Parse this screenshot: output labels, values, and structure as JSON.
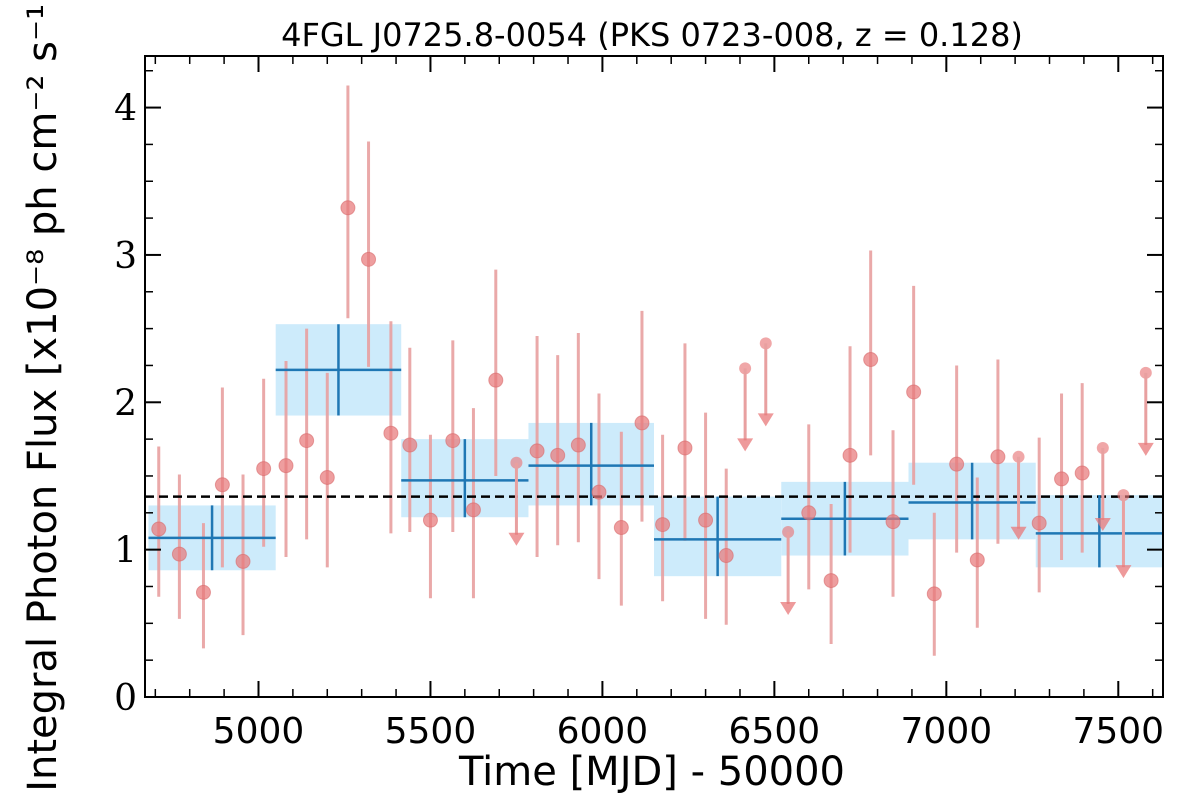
{
  "chart_data": {
    "type": "scatter",
    "title": "4FGL J0725.8-0054 (PKS 0723-008, z = 0.128)",
    "xlabel": "Time [MJD] - 50000",
    "ylabel": "Integral Photon Flux [x10⁻⁸ ph cm⁻² s⁻¹]",
    "xlim": [
      4670,
      7630
    ],
    "ylim": [
      0,
      4.35
    ],
    "xticks": [
      5000,
      5500,
      6000,
      6500,
      7000,
      7500
    ],
    "yticks": [
      0,
      1,
      2,
      3,
      4
    ],
    "grid": false,
    "reference_level": 1.36,
    "colors": {
      "points": "#e8787a",
      "errorbars": "#e8a0a0",
      "bins_fill": "#cdebfb",
      "bins_line": "#1f77b4",
      "reference_line": "#000000"
    },
    "series": [
      {
        "points": [
          {
            "x": 4710,
            "y": 1.14,
            "lo": 0.68,
            "hi": 1.7
          },
          {
            "x": 4770,
            "y": 0.97,
            "lo": 0.53,
            "hi": 1.51
          },
          {
            "x": 4840,
            "y": 0.71,
            "lo": 0.33,
            "hi": 1.18
          },
          {
            "x": 4895,
            "y": 1.44,
            "lo": 0.88,
            "hi": 2.1
          },
          {
            "x": 4955,
            "y": 0.92,
            "lo": 0.42,
            "hi": 1.51
          },
          {
            "x": 5015,
            "y": 1.55,
            "lo": 1.02,
            "hi": 2.16
          },
          {
            "x": 5080,
            "y": 1.57,
            "lo": 0.95,
            "hi": 2.28
          },
          {
            "x": 5140,
            "y": 1.74,
            "lo": 1.07,
            "hi": 2.5
          },
          {
            "x": 5200,
            "y": 1.49,
            "lo": 0.88,
            "hi": 2.2
          },
          {
            "x": 5260,
            "y": 3.32,
            "lo": 2.57,
            "hi": 4.15
          },
          {
            "x": 5320,
            "y": 2.97,
            "lo": 2.24,
            "hi": 3.77
          },
          {
            "x": 5385,
            "y": 1.79,
            "lo": 1.11,
            "hi": 2.55
          },
          {
            "x": 5440,
            "y": 1.71,
            "lo": 1.12,
            "hi": 2.37
          },
          {
            "x": 5500,
            "y": 1.2,
            "lo": 0.67,
            "hi": 1.78
          },
          {
            "x": 5565,
            "y": 1.74,
            "lo": 1.12,
            "hi": 2.42
          },
          {
            "x": 5625,
            "y": 1.27,
            "lo": 0.67,
            "hi": 1.96
          },
          {
            "x": 5690,
            "y": 2.15,
            "lo": 1.5,
            "hi": 2.9
          },
          {
            "x": 5810,
            "y": 1.67,
            "lo": 0.95,
            "hi": 2.45
          },
          {
            "x": 5870,
            "y": 1.64,
            "lo": 1.03,
            "hi": 2.32
          },
          {
            "x": 5930,
            "y": 1.71,
            "lo": 1.05,
            "hi": 2.47
          },
          {
            "x": 5990,
            "y": 1.39,
            "lo": 0.8,
            "hi": 2.06
          },
          {
            "x": 6055,
            "y": 1.15,
            "lo": 0.62,
            "hi": 1.8
          },
          {
            "x": 6115,
            "y": 1.86,
            "lo": 1.19,
            "hi": 2.62
          },
          {
            "x": 6175,
            "y": 1.17,
            "lo": 0.65,
            "hi": 1.78
          },
          {
            "x": 6240,
            "y": 1.69,
            "lo": 1.06,
            "hi": 2.4
          },
          {
            "x": 6300,
            "y": 1.2,
            "lo": 0.53,
            "hi": 1.93
          },
          {
            "x": 6360,
            "y": 0.96,
            "lo": 0.49,
            "hi": 1.55
          },
          {
            "x": 6600,
            "y": 1.25,
            "lo": 0.73,
            "hi": 1.85
          },
          {
            "x": 6665,
            "y": 0.79,
            "lo": 0.36,
            "hi": 1.31
          },
          {
            "x": 6720,
            "y": 1.64,
            "lo": 0.98,
            "hi": 2.38
          },
          {
            "x": 6780,
            "y": 2.29,
            "lo": 1.64,
            "hi": 3.03
          },
          {
            "x": 6845,
            "y": 1.19,
            "lo": 0.68,
            "hi": 1.81
          },
          {
            "x": 6905,
            "y": 2.07,
            "lo": 1.44,
            "hi": 2.79
          },
          {
            "x": 6965,
            "y": 0.7,
            "lo": 0.28,
            "hi": 1.25
          },
          {
            "x": 7030,
            "y": 1.58,
            "lo": 0.98,
            "hi": 2.25
          },
          {
            "x": 7090,
            "y": 0.93,
            "lo": 0.47,
            "hi": 1.49
          },
          {
            "x": 7150,
            "y": 1.63,
            "lo": 1.04,
            "hi": 2.29
          },
          {
            "x": 7270,
            "y": 1.18,
            "lo": 0.71,
            "hi": 1.76
          },
          {
            "x": 7335,
            "y": 1.48,
            "lo": 0.93,
            "hi": 2.06
          },
          {
            "x": 7395,
            "y": 1.52,
            "lo": 0.98,
            "hi": 2.13
          }
        ]
      },
      {
        "upper_limits": [
          {
            "x": 5750,
            "y": 1.59
          },
          {
            "x": 6415,
            "y": 2.23
          },
          {
            "x": 6475,
            "y": 2.4
          },
          {
            "x": 6540,
            "y": 1.12
          },
          {
            "x": 7210,
            "y": 1.63
          },
          {
            "x": 7455,
            "y": 1.69
          },
          {
            "x": 7515,
            "y": 1.37
          },
          {
            "x": 7580,
            "y": 2.2
          }
        ]
      },
      {
        "bins": [
          {
            "x0": 4680,
            "x1": 5050,
            "y": 1.08,
            "lo": 0.86,
            "hi": 1.3
          },
          {
            "x0": 5050,
            "x1": 5415,
            "y": 2.22,
            "lo": 1.91,
            "hi": 2.53
          },
          {
            "x0": 5415,
            "x1": 5785,
            "y": 1.47,
            "lo": 1.22,
            "hi": 1.75
          },
          {
            "x0": 5785,
            "x1": 6150,
            "y": 1.57,
            "lo": 1.3,
            "hi": 1.86
          },
          {
            "x0": 6150,
            "x1": 6520,
            "y": 1.07,
            "lo": 0.82,
            "hi": 1.36
          },
          {
            "x0": 6520,
            "x1": 6890,
            "y": 1.21,
            "lo": 0.96,
            "hi": 1.46
          },
          {
            "x0": 6890,
            "x1": 7260,
            "y": 1.32,
            "lo": 1.07,
            "hi": 1.59
          },
          {
            "x0": 7260,
            "x1": 7630,
            "y": 1.11,
            "lo": 0.88,
            "hi": 1.37
          }
        ]
      }
    ]
  }
}
